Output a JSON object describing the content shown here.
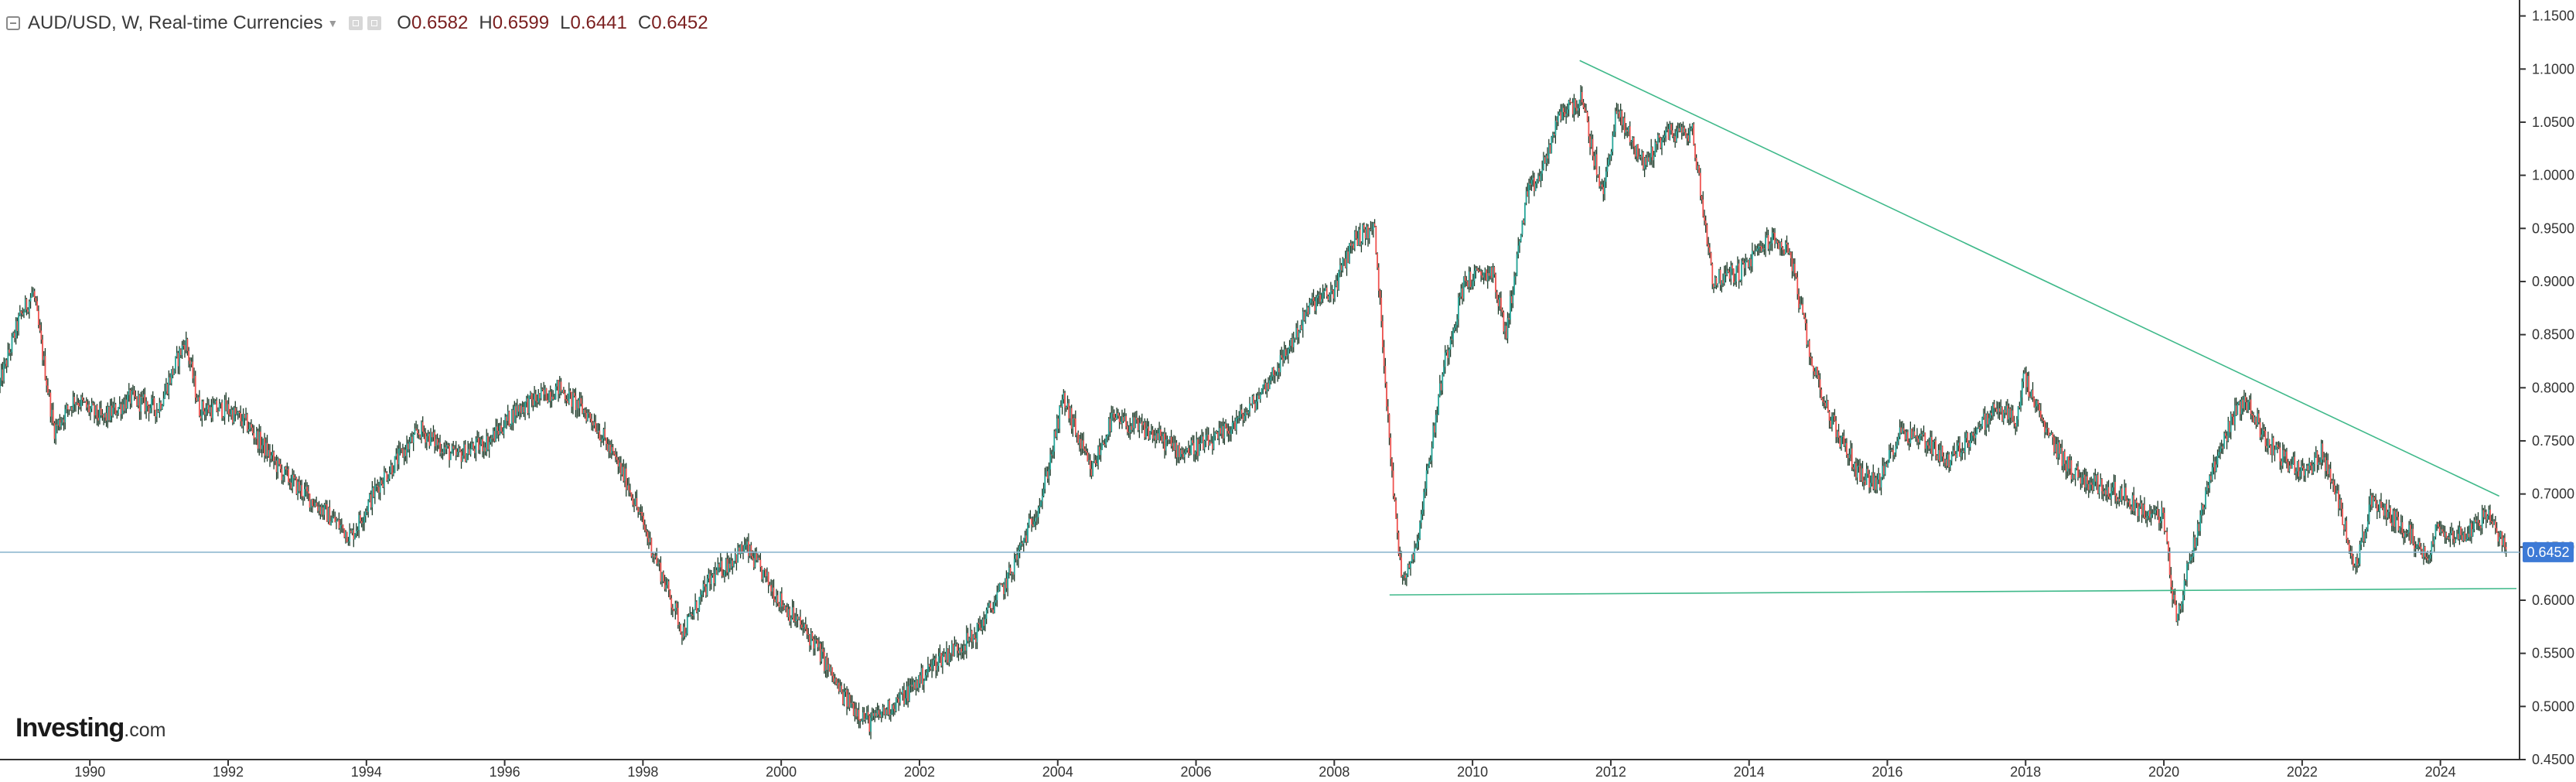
{
  "header": {
    "symbol": "AUD/USD",
    "interval": "W",
    "source": "Real-time Currencies",
    "title_text": "AUD/USD, W, Real-time Currencies",
    "open_label": "O",
    "open": "0.6582",
    "high_label": "H",
    "high": "0.6599",
    "low_label": "L",
    "low": "0.6441",
    "close_label": "C",
    "close": "0.6452"
  },
  "watermark": {
    "brand": "Investing",
    "suffix": ".com"
  },
  "chart_data": {
    "type": "candlestick",
    "title": "AUD/USD, W, Real-time Currencies",
    "xlim": [
      1988.7,
      2025.1
    ],
    "ylim": [
      0.45,
      1.165
    ],
    "y_ticks": [
      "0.4500",
      "0.5000",
      "0.5500",
      "0.6000",
      "0.6500",
      "0.7000",
      "0.7500",
      "0.8000",
      "0.8500",
      "0.9000",
      "0.9500",
      "1.0000",
      "1.0500",
      "1.1000",
      "1.1500"
    ],
    "x_ticks": [
      "1990",
      "1992",
      "1994",
      "1996",
      "1998",
      "2000",
      "2002",
      "2004",
      "2006",
      "2008",
      "2010",
      "2012",
      "2014",
      "2016",
      "2018",
      "2020",
      "2022",
      "2024"
    ],
    "series": [
      {
        "interpolated_from_key_points": true,
        "values": [
          [
            1988.7,
            0.8
          ],
          [
            1989.0,
            0.865
          ],
          [
            1989.2,
            0.89
          ],
          [
            1989.5,
            0.76
          ],
          [
            1989.8,
            0.79
          ],
          [
            1990.2,
            0.77
          ],
          [
            1990.6,
            0.79
          ],
          [
            1991.0,
            0.78
          ],
          [
            1991.4,
            0.845
          ],
          [
            1991.6,
            0.78
          ],
          [
            1992.0,
            0.78
          ],
          [
            1992.3,
            0.765
          ],
          [
            1992.8,
            0.72
          ],
          [
            1993.3,
            0.69
          ],
          [
            1993.8,
            0.66
          ],
          [
            1994.2,
            0.71
          ],
          [
            1994.8,
            0.76
          ],
          [
            1995.3,
            0.735
          ],
          [
            1995.8,
            0.75
          ],
          [
            1996.2,
            0.78
          ],
          [
            1996.8,
            0.8
          ],
          [
            1997.3,
            0.77
          ],
          [
            1997.8,
            0.71
          ],
          [
            1998.2,
            0.64
          ],
          [
            1998.6,
            0.57
          ],
          [
            1999.0,
            0.62
          ],
          [
            1999.5,
            0.65
          ],
          [
            2000.0,
            0.6
          ],
          [
            2000.5,
            0.56
          ],
          [
            2000.9,
            0.51
          ],
          [
            2001.3,
            0.485
          ],
          [
            2001.8,
            0.51
          ],
          [
            2002.3,
            0.545
          ],
          [
            2002.8,
            0.565
          ],
          [
            2003.3,
            0.62
          ],
          [
            2003.8,
            0.7
          ],
          [
            2004.1,
            0.79
          ],
          [
            2004.5,
            0.72
          ],
          [
            2004.8,
            0.77
          ],
          [
            2005.3,
            0.76
          ],
          [
            2005.8,
            0.74
          ],
          [
            2006.3,
            0.75
          ],
          [
            2006.8,
            0.78
          ],
          [
            2007.3,
            0.83
          ],
          [
            2007.7,
            0.88
          ],
          [
            2008.0,
            0.89
          ],
          [
            2008.3,
            0.94
          ],
          [
            2008.6,
            0.95
          ],
          [
            2008.9,
            0.68
          ],
          [
            2009.0,
            0.62
          ],
          [
            2009.2,
            0.65
          ],
          [
            2009.6,
            0.82
          ],
          [
            2009.9,
            0.9
          ],
          [
            2010.3,
            0.91
          ],
          [
            2010.5,
            0.85
          ],
          [
            2010.8,
            0.98
          ],
          [
            2011.0,
            1.0
          ],
          [
            2011.3,
            1.06
          ],
          [
            2011.6,
            1.07
          ],
          [
            2011.9,
            0.98
          ],
          [
            2012.1,
            1.06
          ],
          [
            2012.5,
            1.01
          ],
          [
            2012.8,
            1.04
          ],
          [
            2013.2,
            1.04
          ],
          [
            2013.5,
            0.9
          ],
          [
            2013.9,
            0.91
          ],
          [
            2014.3,
            0.94
          ],
          [
            2014.6,
            0.93
          ],
          [
            2014.9,
            0.83
          ],
          [
            2015.2,
            0.77
          ],
          [
            2015.6,
            0.72
          ],
          [
            2015.9,
            0.71
          ],
          [
            2016.2,
            0.76
          ],
          [
            2016.6,
            0.75
          ],
          [
            2016.9,
            0.73
          ],
          [
            2017.3,
            0.76
          ],
          [
            2017.6,
            0.78
          ],
          [
            2017.9,
            0.77
          ],
          [
            2018.0,
            0.81
          ],
          [
            2018.3,
            0.76
          ],
          [
            2018.7,
            0.72
          ],
          [
            2019.0,
            0.71
          ],
          [
            2019.4,
            0.7
          ],
          [
            2019.8,
            0.68
          ],
          [
            2020.0,
            0.68
          ],
          [
            2020.2,
            0.58
          ],
          [
            2020.4,
            0.64
          ],
          [
            2020.7,
            0.72
          ],
          [
            2021.0,
            0.77
          ],
          [
            2021.2,
            0.79
          ],
          [
            2021.5,
            0.75
          ],
          [
            2021.8,
            0.73
          ],
          [
            2022.1,
            0.72
          ],
          [
            2022.3,
            0.74
          ],
          [
            2022.6,
            0.68
          ],
          [
            2022.8,
            0.63
          ],
          [
            2023.0,
            0.69
          ],
          [
            2023.3,
            0.68
          ],
          [
            2023.6,
            0.66
          ],
          [
            2023.8,
            0.64
          ],
          [
            2024.0,
            0.67
          ],
          [
            2024.3,
            0.66
          ],
          [
            2024.5,
            0.67
          ],
          [
            2024.7,
            0.68
          ],
          [
            2024.85,
            0.66
          ],
          [
            2025.0,
            0.645
          ]
        ]
      }
    ],
    "last_price": 0.6452,
    "last_price_label": "0.6452",
    "hline": 0.6452,
    "trendlines": [
      {
        "from": [
          2011.55,
          1.108
        ],
        "to": [
          2024.85,
          0.698
        ]
      },
      {
        "from": [
          2008.8,
          0.605
        ],
        "to": [
          2025.1,
          0.611
        ]
      }
    ],
    "colors": {
      "up": "#26a69a",
      "down": "#ef5350",
      "candle": "#1f3b2a",
      "trendline": "#3fb98a",
      "hline": "#8fb8d0",
      "price_badge": "#3d7ad6"
    }
  }
}
